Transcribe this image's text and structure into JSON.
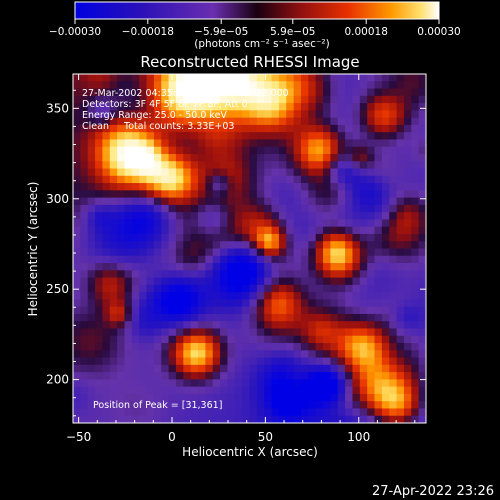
{
  "chart_data": {
    "type": "heatmap",
    "title": "Reconstructed RHESSI Image",
    "xlabel": "Heliocentric X (arcsec)",
    "ylabel": "Heliocentric Y (arcsec)",
    "xlim": [
      -53,
      136
    ],
    "ylim": [
      176,
      369
    ],
    "xticks": [
      -50,
      0,
      50,
      100
    ],
    "yticks": [
      200,
      250,
      300,
      350
    ],
    "xtick_labels": [
      "−50",
      "0",
      "50",
      "100"
    ],
    "ytick_labels": [
      "200",
      "250",
      "300",
      "350"
    ],
    "colorbar": {
      "min": -0.0003,
      "max": 0.0003,
      "tick_values": [
        -0.0003,
        -0.00018,
        -5.9e-05,
        5.9e-05,
        0.00018,
        0.0003
      ],
      "tick_labels": [
        "−0.00030",
        "−0.00018",
        "−5.9e−05",
        "5.9e−05",
        "0.00018",
        "0.00030"
      ],
      "unit_label": "(photons cm⁻² s⁻¹ asec⁻²)",
      "colors": [
        "#0000e0",
        "#3a1aa8",
        "#6a2eb0",
        "#4a0a2a",
        "#a01010",
        "#e03000",
        "#ff7a00",
        "#ffd040",
        "#ffffff"
      ]
    },
    "annotations": [
      "27-Mar-2002 04:35:40.000 to 04:39:32.000",
      "Detectors: 3F 4F 5F 6F 7F 8F, Att 0",
      "Energy Range: 25.0 - 50.0 keV",
      "Clean     Total counts: 3.33E+03"
    ],
    "peak_label": "Position of Peak = [31,361]",
    "peak": [
      31,
      361
    ],
    "grid": false
  },
  "footer_timestamp": "27-Apr-2022 23:26"
}
